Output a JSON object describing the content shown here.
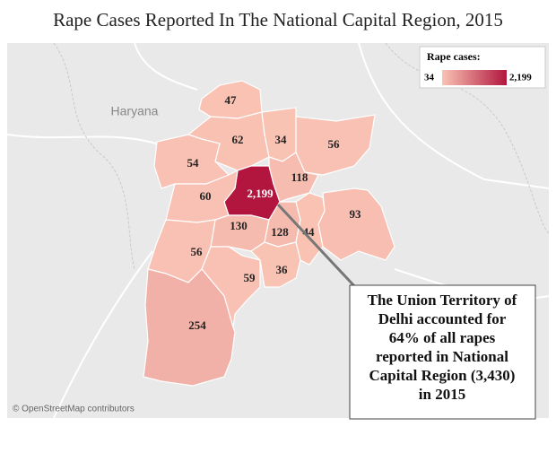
{
  "title": "Rape Cases Reported In The National Capital Region, 2015",
  "basemap_label": "Haryana",
  "attribution": "© OpenStreetMap contributors",
  "legend": {
    "title": "Rape cases:",
    "min": 34,
    "max": {
      "value": 2199,
      "label": "2,199"
    }
  },
  "regions": [
    {
      "value": 47
    },
    {
      "value": 62
    },
    {
      "value": 34
    },
    {
      "value": 56
    },
    {
      "value": 54
    },
    {
      "value": 2199,
      "label": "2,199"
    },
    {
      "value": 118
    },
    {
      "value": 60
    },
    {
      "value": 93
    },
    {
      "value": 130
    },
    {
      "value": 128
    },
    {
      "value": 44
    },
    {
      "value": 56
    },
    {
      "value": 59
    },
    {
      "value": 36
    },
    {
      "value": 254
    }
  ],
  "annotation": [
    "The Union Territory of",
    "Delhi accounted for",
    "64% of all rapes",
    "reported in National",
    "Capital Region (3,430)",
    "in 2015"
  ]
}
